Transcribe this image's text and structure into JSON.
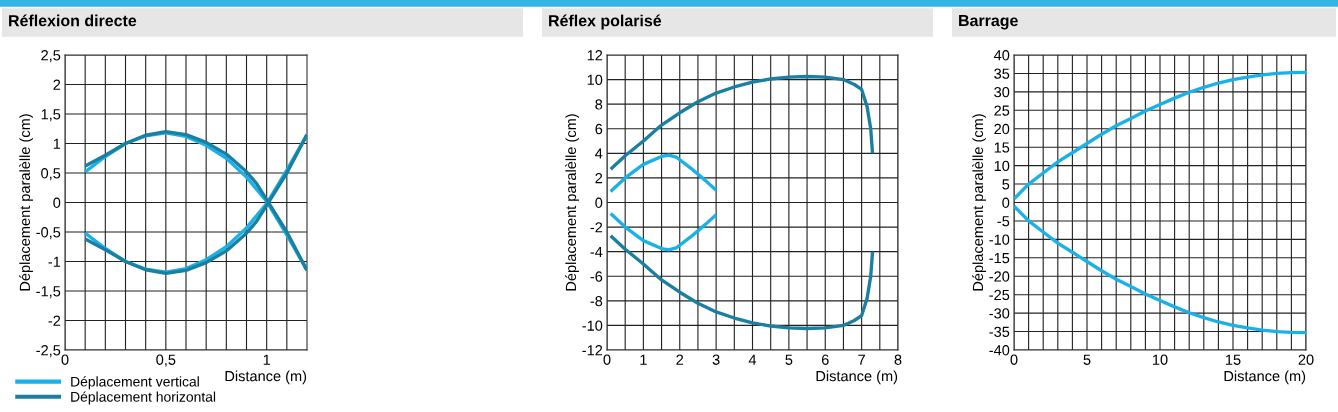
{
  "chart_data": [
    {
      "type": "line",
      "title": "Réflexion directe",
      "xlabel": "Distance (m)",
      "ylabel": "Déplacement paralèlle (cm)",
      "grid": true,
      "legend": "bottom left",
      "xlim": [
        0,
        1.2
      ],
      "xticks": [
        0,
        {
          "value": 0.1,
          "label": null
        },
        {
          "value": 0.2,
          "label": null
        },
        {
          "value": 0.3,
          "label": null
        },
        {
          "value": 0.4,
          "label": null
        },
        {
          "value": 0.5,
          "label": "0,5"
        },
        {
          "value": 0.6,
          "label": null
        },
        {
          "value": 0.7,
          "label": null
        },
        {
          "value": 0.8,
          "label": null
        },
        {
          "value": 0.9,
          "label": null
        },
        1,
        {
          "value": 1.1,
          "label": null
        }
      ],
      "ylim": [
        -2.5,
        2.5
      ],
      "yticks": [
        {
          "value": -2.5,
          "label": "-2,5"
        },
        -2,
        {
          "value": -1.5,
          "label": "-1,5"
        },
        -1,
        {
          "value": -0.5,
          "label": "-0,5"
        },
        0,
        {
          "value": 0.5,
          "label": "0,5"
        },
        1,
        {
          "value": 1.5,
          "label": "1,5"
        },
        2,
        {
          "value": 2.5,
          "label": "2,5"
        }
      ],
      "series": [
        {
          "name": "Déplacement vertical",
          "color": "#1ab0e8",
          "x": [
            0.1,
            0.2,
            0.3,
            0.4,
            0.5,
            0.6,
            0.7,
            0.8,
            0.9,
            1.0,
            1.1,
            1.2
          ],
          "values": [
            0.52,
            0.78,
            1.0,
            1.13,
            1.18,
            1.12,
            0.97,
            0.75,
            0.43,
            0.02,
            -0.55,
            -1.15
          ]
        },
        {
          "color": "#1ab0e8",
          "x": [
            0.1,
            0.2,
            0.3,
            0.4,
            0.5,
            0.6,
            0.7,
            0.8,
            0.9,
            1.0,
            1.1,
            1.2
          ],
          "values": [
            -0.52,
            -0.78,
            -1.0,
            -1.13,
            -1.18,
            -1.12,
            -0.97,
            -0.75,
            -0.43,
            -0.02,
            0.55,
            1.15
          ]
        },
        {
          "name": "Déplacement horizontal",
          "color": "#1a7fa0",
          "x": [
            0.1,
            0.2,
            0.3,
            0.4,
            0.5,
            0.6,
            0.7,
            0.8,
            0.9,
            0.95,
            1.0,
            1.1,
            1.2
          ],
          "values": [
            0.62,
            0.8,
            1.0,
            1.14,
            1.2,
            1.15,
            1.02,
            0.82,
            0.52,
            0.32,
            0.05,
            -0.5,
            -1.15
          ]
        },
        {
          "color": "#1a7fa0",
          "x": [
            0.1,
            0.2,
            0.3,
            0.4,
            0.5,
            0.6,
            0.7,
            0.8,
            0.9,
            0.95,
            1.0,
            1.1,
            1.2
          ],
          "values": [
            -0.62,
            -0.8,
            -1.0,
            -1.14,
            -1.2,
            -1.15,
            -1.02,
            -0.82,
            -0.52,
            -0.32,
            -0.05,
            0.5,
            1.15
          ]
        }
      ]
    },
    {
      "type": "line",
      "title": "Réflex polarisé",
      "xlabel": "Distance (m)",
      "ylabel": "Déplacement paralèlle (cm)",
      "grid": true,
      "xlim": [
        0,
        8
      ],
      "xticks": [
        0,
        {
          "value": 0.5,
          "label": null
        },
        1,
        {
          "value": 1.5,
          "label": null
        },
        2,
        {
          "value": 2.5,
          "label": null
        },
        3,
        {
          "value": 3.5,
          "label": null
        },
        4,
        {
          "value": 4.5,
          "label": null
        },
        5,
        {
          "value": 5.5,
          "label": null
        },
        6,
        {
          "value": 6.5,
          "label": null
        },
        7,
        {
          "value": 7.5,
          "label": null
        },
        8
      ],
      "ylim": [
        -12,
        12
      ],
      "yticks": [
        -12,
        -10,
        -8,
        -6,
        -4,
        -2,
        0,
        2,
        4,
        6,
        8,
        10,
        12
      ],
      "series": [
        {
          "color": "#1ab0e8",
          "x": [
            0.1,
            0.5,
            1.0,
            1.5,
            1.7,
            1.9,
            2.3,
            2.7,
            3.0
          ],
          "values": [
            0.9,
            2.0,
            3.1,
            3.75,
            3.85,
            3.7,
            2.8,
            1.8,
            1.0
          ]
        },
        {
          "color": "#1ab0e8",
          "x": [
            0.1,
            0.5,
            1.0,
            1.5,
            1.7,
            1.9,
            2.3,
            2.7,
            3.0
          ],
          "values": [
            -0.9,
            -2.0,
            -3.1,
            -3.75,
            -3.85,
            -3.7,
            -2.8,
            -1.8,
            -1.0
          ]
        },
        {
          "color": "#1a7fa0",
          "x": [
            0.1,
            0.5,
            1.0,
            1.5,
            2.0,
            2.5,
            3.0,
            3.5,
            4.0,
            4.5,
            5.0,
            5.5,
            6.0,
            6.5,
            6.8,
            7.0,
            7.15,
            7.25,
            7.3
          ],
          "values": [
            2.7,
            3.8,
            5.0,
            6.3,
            7.3,
            8.2,
            8.9,
            9.4,
            9.8,
            10.05,
            10.2,
            10.25,
            10.2,
            10.0,
            9.6,
            9.2,
            7.8,
            6.0,
            4.0
          ]
        },
        {
          "color": "#1a7fa0",
          "x": [
            0.1,
            0.5,
            1.0,
            1.5,
            2.0,
            2.5,
            3.0,
            3.5,
            4.0,
            4.5,
            5.0,
            5.5,
            6.0,
            6.5,
            6.8,
            7.0,
            7.15,
            7.25,
            7.3
          ],
          "values": [
            -2.7,
            -3.8,
            -5.0,
            -6.3,
            -7.3,
            -8.2,
            -8.9,
            -9.4,
            -9.8,
            -10.05,
            -10.2,
            -10.25,
            -10.2,
            -10.0,
            -9.6,
            -9.2,
            -7.8,
            -6.0,
            -4.0
          ]
        }
      ]
    },
    {
      "type": "line",
      "title": "Barrage",
      "xlabel": "Distance (m)",
      "ylabel": "Déplacement paralèlle (cm)",
      "grid": true,
      "xlim": [
        0,
        20
      ],
      "xticks": [
        0,
        {
          "value": 1,
          "label": null
        },
        {
          "value": 2,
          "label": null
        },
        {
          "value": 3,
          "label": null
        },
        {
          "value": 4,
          "label": null
        },
        5,
        {
          "value": 6,
          "label": null
        },
        {
          "value": 7,
          "label": null
        },
        {
          "value": 8,
          "label": null
        },
        {
          "value": 9,
          "label": null
        },
        10,
        {
          "value": 11,
          "label": null
        },
        {
          "value": 12,
          "label": null
        },
        {
          "value": 13,
          "label": null
        },
        {
          "value": 14,
          "label": null
        },
        15,
        {
          "value": 16,
          "label": null
        },
        {
          "value": 17,
          "label": null
        },
        {
          "value": 18,
          "label": null
        },
        {
          "value": 19,
          "label": null
        },
        20
      ],
      "ylim": [
        -40,
        40
      ],
      "yticks": [
        -40,
        -35,
        -30,
        -25,
        -20,
        -15,
        -10,
        -5,
        0,
        5,
        10,
        15,
        20,
        25,
        30,
        35,
        40
      ],
      "series": [
        {
          "color": "#1ab0e8",
          "x": [
            0,
            1,
            2,
            3,
            4,
            5,
            6,
            7,
            8,
            9,
            10,
            11,
            12,
            13,
            14,
            15,
            16,
            17,
            18,
            19,
            20
          ],
          "values": [
            1,
            5,
            8,
            11,
            13.5,
            16,
            18.5,
            20.8,
            22.8,
            24.8,
            26.6,
            28.3,
            29.9,
            31.2,
            32.4,
            33.3,
            34.0,
            34.6,
            35.0,
            35.2,
            35.3
          ]
        },
        {
          "color": "#1ab0e8",
          "x": [
            0,
            1,
            2,
            3,
            4,
            5,
            6,
            7,
            8,
            9,
            10,
            11,
            12,
            13,
            14,
            15,
            16,
            17,
            18,
            19,
            20
          ],
          "values": [
            -1,
            -5,
            -8,
            -11,
            -13.5,
            -16,
            -18.5,
            -20.8,
            -22.8,
            -24.8,
            -26.6,
            -28.3,
            -29.9,
            -31.2,
            -32.4,
            -33.3,
            -34.0,
            -34.6,
            -35.0,
            -35.2,
            -35.3
          ]
        }
      ]
    }
  ]
}
